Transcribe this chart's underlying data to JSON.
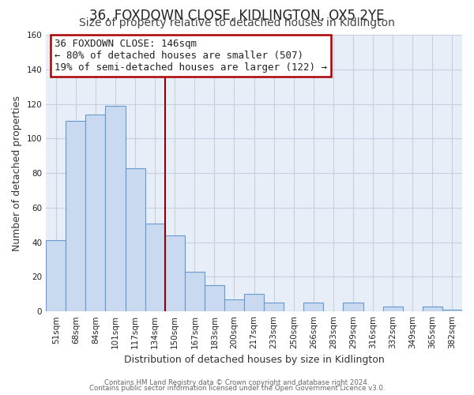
{
  "title": "36, FOXDOWN CLOSE, KIDLINGTON, OX5 2YE",
  "subtitle": "Size of property relative to detached houses in Kidlington",
  "xlabel": "Distribution of detached houses by size in Kidlington",
  "ylabel": "Number of detached properties",
  "bar_labels": [
    "51sqm",
    "68sqm",
    "84sqm",
    "101sqm",
    "117sqm",
    "134sqm",
    "150sqm",
    "167sqm",
    "183sqm",
    "200sqm",
    "217sqm",
    "233sqm",
    "250sqm",
    "266sqm",
    "283sqm",
    "299sqm",
    "316sqm",
    "332sqm",
    "349sqm",
    "365sqm",
    "382sqm"
  ],
  "bar_values": [
    41,
    110,
    114,
    119,
    83,
    51,
    44,
    23,
    15,
    7,
    10,
    5,
    0,
    5,
    0,
    5,
    0,
    3,
    0,
    3,
    1
  ],
  "bar_color": "#c9d9f0",
  "bar_edge_color": "#6699cc",
  "annotation_title": "36 FOXDOWN CLOSE: 146sqm",
  "annotation_line1": "← 80% of detached houses are smaller (507)",
  "annotation_line2": "19% of semi-detached houses are larger (122) →",
  "vline_x_index": 6,
  "vline_color": "#8b0000",
  "ylim": [
    0,
    160
  ],
  "yticks": [
    0,
    20,
    40,
    60,
    80,
    100,
    120,
    140,
    160
  ],
  "footer1": "Contains HM Land Registry data © Crown copyright and database right 2024.",
  "footer2": "Contains public sector information licensed under the Open Government Licence v3.0.",
  "plot_bg_color": "#e8eef8",
  "fig_bg_color": "#ffffff",
  "grid_color": "#c8d0e0",
  "title_fontsize": 12,
  "subtitle_fontsize": 10,
  "axis_label_fontsize": 9,
  "tick_fontsize": 7.5,
  "annotation_box_edge_color": "#aa0000",
  "annotation_fontsize": 9
}
